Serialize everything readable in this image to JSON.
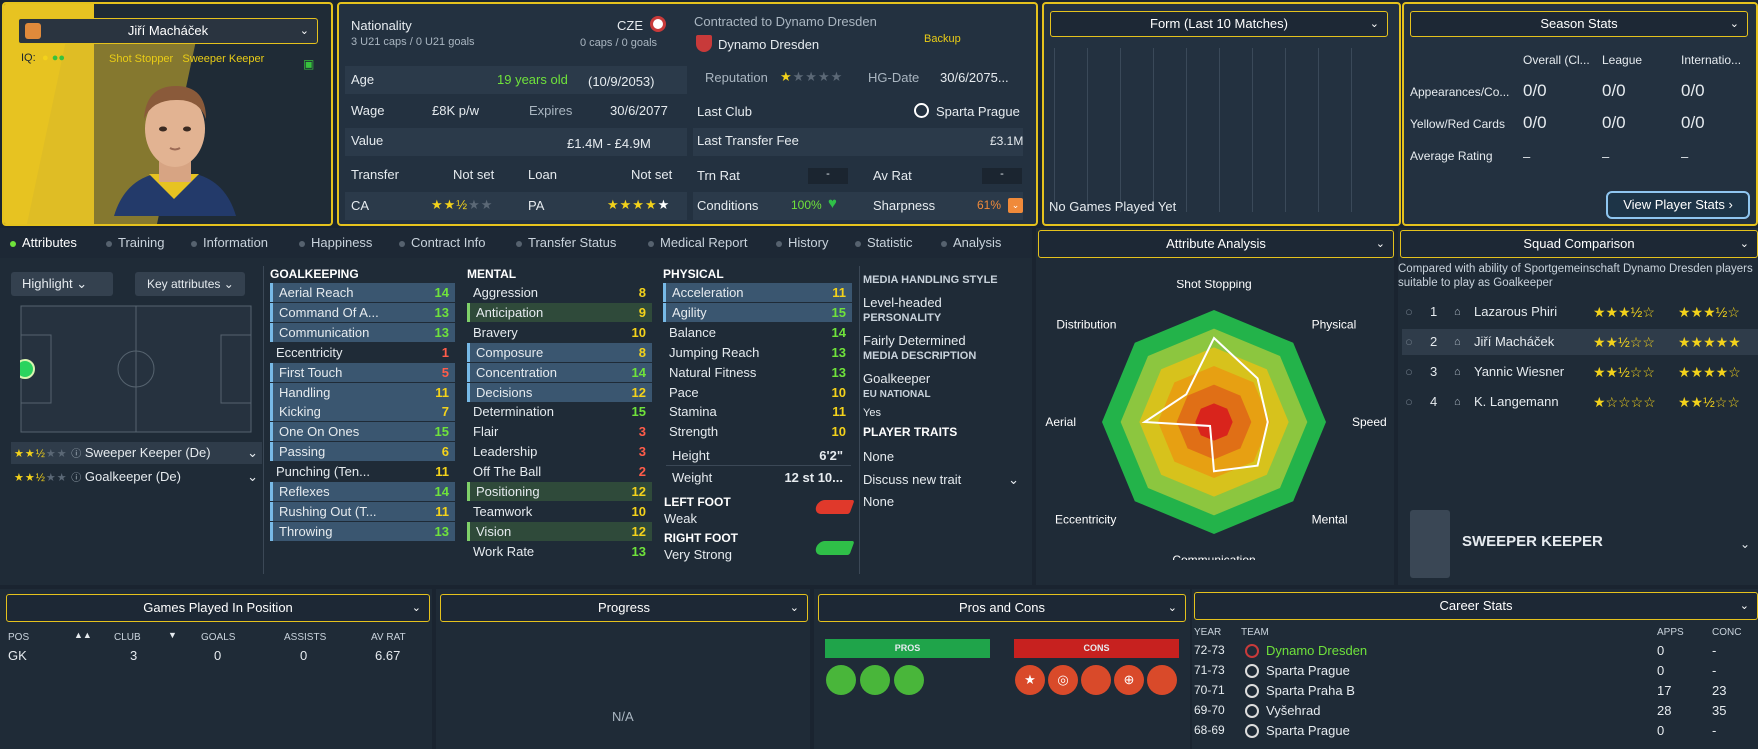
{
  "player": {
    "name": "Jiří Macháček",
    "iq_label": "IQ:",
    "roles_text": "Shot Stopper   Sweeper Keeper"
  },
  "contract": {
    "nationality_label": "Nationality",
    "nationality": "CZE",
    "u21": "3 U21 caps / 0 U21 goals",
    "caps": "0 caps / 0 goals",
    "contracted_to": "Contracted to Dynamo Dresden",
    "club": "Dynamo Dresden",
    "squad_status": "Backup",
    "age_label": "Age",
    "age": "19 years old",
    "dob": "(10/9/2053)",
    "reputation_label": "Reputation",
    "hg_label": "HG-Date",
    "hg_date": "30/6/2075...",
    "wage_label": "Wage",
    "wage": "£8K p/w",
    "expires_label": "Expires",
    "expires": "30/6/2077",
    "last_club_label": "Last Club",
    "last_club": "Sparta Prague",
    "value_label": "Value",
    "value": "£1.4M - £4.9M",
    "last_fee_label": "Last Transfer Fee",
    "last_fee": "£3.1M",
    "transfer_label": "Transfer",
    "transfer": "Not set",
    "loan_label": "Loan",
    "loan": "Not set",
    "trn_rat_label": "Trn Rat",
    "trn_rat": "-",
    "av_rat_label": "Av Rat",
    "av_rat": "-",
    "ca_label": "CA",
    "pa_label": "PA",
    "conditions_label": "Conditions",
    "conditions": "100%",
    "sharpness_label": "Sharpness",
    "sharpness": "61%"
  },
  "form": {
    "title": "Form (Last 10 Matches)",
    "empty": "No Games Played Yet"
  },
  "season": {
    "title": "Season Stats",
    "cols": [
      "Overall (Cl...",
      "League",
      "Internatio..."
    ],
    "rows": [
      {
        "label": "Appearances/Co...",
        "vals": [
          "0/0",
          "0/0",
          "0/0"
        ]
      },
      {
        "label": "Yellow/Red Cards",
        "vals": [
          "0/0",
          "0/0",
          "0/0"
        ]
      },
      {
        "label": "Average Rating",
        "vals": [
          "–",
          "–",
          "–"
        ]
      }
    ],
    "button": "View Player Stats"
  },
  "tabs": [
    "Attributes",
    "Training",
    "Information",
    "Happiness",
    "Contract Info",
    "Transfer Status",
    "Medical Report",
    "History",
    "Statistic",
    "Analysis"
  ],
  "left": {
    "highlight": "Highlight",
    "key_attributes": "Key attributes",
    "role1": "Sweeper Keeper (De)",
    "role2": "Goalkeeper (De)"
  },
  "goalkeeping": {
    "title": "GOALKEEPING",
    "items": [
      [
        "Aerial Reach",
        "14"
      ],
      [
        "Command Of A...",
        "13"
      ],
      [
        "Communication",
        "13"
      ],
      [
        "Eccentricity",
        "1"
      ],
      [
        "First Touch",
        "5"
      ],
      [
        "Handling",
        "11"
      ],
      [
        "Kicking",
        "7"
      ],
      [
        "One On Ones",
        "15"
      ],
      [
        "Passing",
        "6"
      ],
      [
        "Punching (Ten...",
        "11"
      ],
      [
        "Reflexes",
        "14"
      ],
      [
        "Rushing Out (T...",
        "11"
      ],
      [
        "Throwing",
        "13"
      ]
    ]
  },
  "mental": {
    "title": "MENTAL",
    "items": [
      [
        "Aggression",
        "8"
      ],
      [
        "Anticipation",
        "9"
      ],
      [
        "Bravery",
        "10"
      ],
      [
        "Composure",
        "8"
      ],
      [
        "Concentration",
        "14"
      ],
      [
        "Decisions",
        "12"
      ],
      [
        "Determination",
        "15"
      ],
      [
        "Flair",
        "3"
      ],
      [
        "Leadership",
        "3"
      ],
      [
        "Off The Ball",
        "2"
      ],
      [
        "Positioning",
        "12"
      ],
      [
        "Teamwork",
        "10"
      ],
      [
        "Vision",
        "12"
      ],
      [
        "Work Rate",
        "13"
      ]
    ]
  },
  "physical": {
    "title": "PHYSICAL",
    "items": [
      [
        "Acceleration",
        "11"
      ],
      [
        "Agility",
        "15"
      ],
      [
        "Balance",
        "14"
      ],
      [
        "Jumping Reach",
        "13"
      ],
      [
        "Natural Fitness",
        "13"
      ],
      [
        "Pace",
        "10"
      ],
      [
        "Stamina",
        "11"
      ],
      [
        "Strength",
        "10"
      ]
    ],
    "height_label": "Height",
    "height": "6'2\"",
    "weight_label": "Weight",
    "weight": "12 st 10...",
    "left_foot_label": "LEFT FOOT",
    "left_foot": "Weak",
    "right_foot_label": "RIGHT FOOT",
    "right_foot": "Very Strong"
  },
  "media": {
    "mhs_title": "MEDIA HANDLING STYLE",
    "mhs": "Level-headed",
    "personality_title": "PERSONALITY",
    "personality": "Fairly Determined",
    "desc_title": "MEDIA DESCRIPTION",
    "desc": "Goalkeeper",
    "eu_title": "EU NATIONAL",
    "eu": "Yes",
    "traits_title": "PLAYER TRAITS",
    "traits": "None",
    "discuss": "Discuss new trait",
    "discuss_val": "None"
  },
  "analysis": {
    "title": "Attribute Analysis",
    "labels": [
      "Shot Stopping",
      "Physical",
      "Speed",
      "Mental",
      "Communication",
      "Eccentricity",
      "Aerial",
      "Distribution"
    ],
    "values": [
      0.75,
      0.55,
      0.48,
      0.55,
      0.44,
      0.05,
      0.62,
      0.35
    ]
  },
  "squad": {
    "title": "Squad Comparison",
    "desc": "Compared with ability of Sportgemeinschaft Dynamo Dresden players suitable to play as Goalkeeper",
    "rows": [
      {
        "n": "1",
        "name": "Lazarous Phiri",
        "ca": 3.5,
        "pa": 3.5
      },
      {
        "n": "2",
        "name": "Jiří Macháček",
        "ca": 2.5,
        "pa": 5
      },
      {
        "n": "3",
        "name": "Yannic Wiesner",
        "ca": 2.5,
        "pa": 4
      },
      {
        "n": "4",
        "name": "K. Langemann",
        "ca": 1,
        "pa": 2.5
      }
    ],
    "role": "SWEEPER KEEPER"
  },
  "games": {
    "title": "Games Played In Position",
    "cols": [
      "POS",
      "CLUB",
      "GOALS",
      "ASSISTS",
      "AV RAT"
    ],
    "row": [
      "GK",
      "3",
      "0",
      "0",
      "6.67"
    ]
  },
  "progress": {
    "title": "Progress",
    "empty": "N/A"
  },
  "proscons": {
    "title": "Pros and Cons",
    "pros": "PROS",
    "cons": "CONS"
  },
  "career": {
    "title": "Career Stats",
    "cols": [
      "YEAR",
      "TEAM",
      "APPS",
      "CONC"
    ],
    "rows": [
      [
        "72-73",
        "Dynamo Dresden",
        "0",
        "-"
      ],
      [
        "71-73",
        "Sparta Prague",
        "0",
        "-"
      ],
      [
        "70-71",
        "Sparta Praha B",
        "17",
        "23"
      ],
      [
        "69-70",
        "Vyšehrad",
        "28",
        "35"
      ],
      [
        "68-69",
        "Sparta Prague",
        "0",
        "-"
      ]
    ]
  },
  "colors": {
    "accent": "#e5c21d",
    "green": "#6fe23b",
    "red": "#ff5c4a"
  }
}
